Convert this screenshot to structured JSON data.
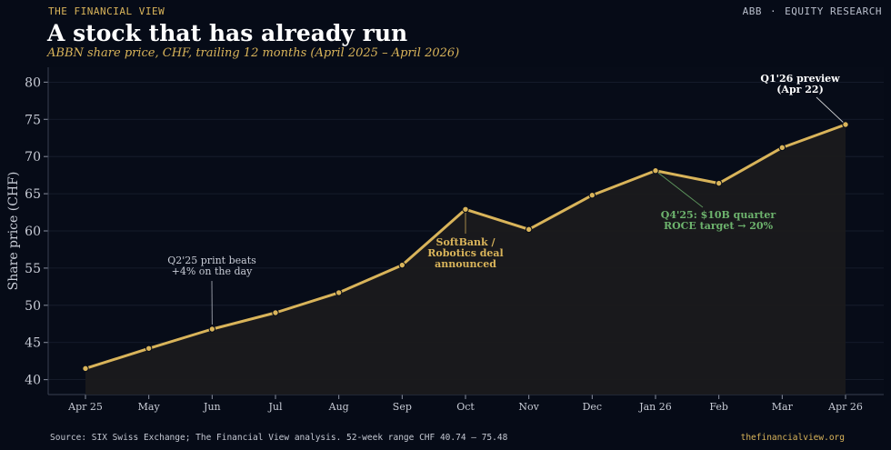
{
  "header": {
    "kicker": "THE FINANCIAL VIEW",
    "ticker": "ABB",
    "separator": "·",
    "section": "EQUITY RESEARCH"
  },
  "footer": {
    "source": "Source: SIX Swiss Exchange; The Financial View analysis. 52-week range CHF 40.74 – 75.48",
    "site": "thefinancialview.org"
  },
  "colors": {
    "background": "#060b17",
    "line": "#d9b45a",
    "annotation_green": "#6db36d",
    "annotation_white": "#ffffff",
    "annotation_gray": "#c8ccd6",
    "grid": "#1a2030"
  },
  "chart_data": {
    "type": "line",
    "title": "A stock that has already run",
    "subtitle": "ABBN share price, CHF, trailing 12 months (April 2025 – April 2026)",
    "xlabel": "",
    "ylabel": "Share price (CHF)",
    "ylim": [
      38,
      82
    ],
    "yticks": [
      40,
      45,
      50,
      55,
      60,
      65,
      70,
      75,
      80
    ],
    "categories": [
      "Apr 25",
      "May",
      "Jun",
      "Jul",
      "Aug",
      "Sep",
      "Oct",
      "Nov",
      "Dec",
      "Jan 26",
      "Feb",
      "Mar",
      "Apr 26"
    ],
    "series": [
      {
        "values": [
          41.5,
          44.2,
          46.8,
          49.0,
          51.7,
          55.4,
          62.9,
          60.2,
          64.8,
          68.1,
          66.4,
          71.2,
          74.3
        ]
      }
    ],
    "grid": true,
    "area_fill": true,
    "annotations": [
      {
        "lines": [
          "Q2'25 print beats",
          "+4% on the day"
        ],
        "index": 2,
        "style": "gray"
      },
      {
        "lines": [
          "SoftBank /",
          "Robotics deal",
          "announced"
        ],
        "index": 6,
        "style": "gold"
      },
      {
        "lines": [
          "Q4'25: $10B quarter",
          "ROCE target → 20%"
        ],
        "index": 9,
        "style": "green"
      },
      {
        "lines": [
          "Q1'26 preview",
          "(Apr 22)"
        ],
        "index": 12,
        "style": "white"
      }
    ]
  }
}
